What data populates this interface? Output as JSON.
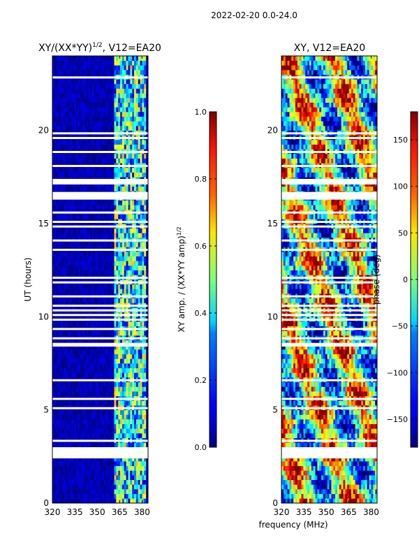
{
  "suptitle": "2022-02-20 0.0-24.0",
  "xlabel": "frequency (MHz)",
  "chart_data": [
    {
      "type": "heatmap",
      "title": "XY/(XX*YY)",
      "title_sup": "1/2",
      "title_tail": ", V12=EA20",
      "xlabel": "frequency (MHz)",
      "ylabel": "UT (hours)",
      "xlim": [
        320,
        384
      ],
      "ylim": [
        0,
        24
      ],
      "xticks": [
        320,
        335,
        350,
        365,
        380
      ],
      "yticks": [
        0,
        5,
        10,
        15,
        20
      ],
      "quantity": "XY amplitude normalized",
      "colorbar": {
        "label": "XY amp. / (XX*YY amp)",
        "label_sup": "1/2",
        "range": [
          0.0,
          1.0
        ],
        "ticks": [
          "0.0",
          "0.2",
          "0.4",
          "0.6",
          "0.8",
          "1.0"
        ],
        "colormap": "jet"
      },
      "flagged_time_ranges_hours": [
        [
          2.4,
          3.0
        ],
        [
          8.4,
          8.6
        ],
        [
          16.3,
          16.7
        ],
        [
          17.1,
          17.4
        ]
      ],
      "low_freq_band_value_range": [
        0.0,
        0.1
      ],
      "high_freq_band_MHz": [
        362,
        383
      ],
      "high_freq_band_value_range": [
        0.1,
        0.7
      ]
    },
    {
      "type": "heatmap",
      "title": "XY, V12=EA20",
      "xlabel": "frequency (MHz)",
      "ylabel": "",
      "xlim": [
        320,
        384
      ],
      "ylim": [
        0,
        24
      ],
      "xticks": [
        320,
        335,
        350,
        365,
        380
      ],
      "yticks": [
        0,
        5,
        10,
        15,
        20
      ],
      "quantity": "XY phase",
      "colorbar": {
        "label": "phase (deg)",
        "range": [
          -180,
          180
        ],
        "ticks": [
          "−150",
          "−100",
          "−50",
          "0",
          "50",
          "100",
          "150"
        ],
        "colormap": "jet"
      },
      "flagged_time_ranges_hours": [
        [
          2.4,
          3.0
        ],
        [
          8.4,
          8.6
        ],
        [
          16.3,
          16.7
        ],
        [
          17.1,
          17.4
        ]
      ],
      "phase_range_deg": [
        -180,
        180
      ]
    }
  ]
}
